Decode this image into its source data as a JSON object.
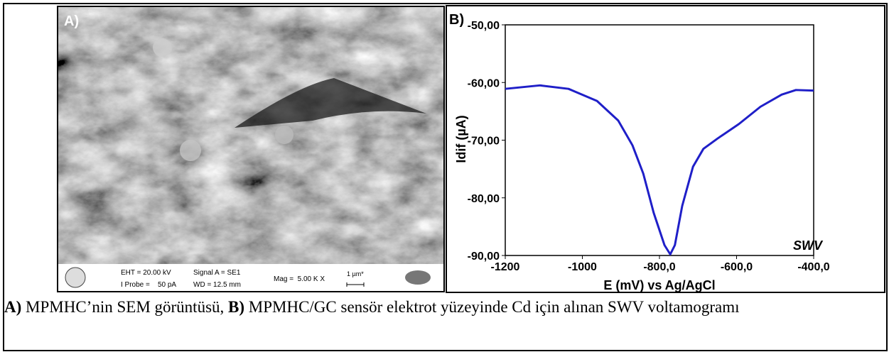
{
  "panel_a": {
    "label": "A)",
    "info": {
      "eht": "EHT = 20.00 kV",
      "probe": "I Probe =    50 pA",
      "signal": "Signal A = SE1",
      "wd": "WD = 12.5 mm",
      "mag": "Mag =  5.00 K X",
      "scale": "1 µm*"
    }
  },
  "chart_data": {
    "type": "line",
    "label": "B)",
    "annotation": "SWV",
    "x_label": "E (mV) vs Ag/AgCl",
    "y_label": "Idif (µA)",
    "x": [
      -1200,
      -1110,
      -1036,
      -962,
      -907,
      -870,
      -842,
      -815,
      -787,
      -772,
      -760,
      -741,
      -713,
      -686,
      -649,
      -594,
      -538,
      -483,
      -446,
      -400
    ],
    "series": [
      {
        "name": "SWV",
        "color": "#1f1fc8",
        "values": [
          -61.1,
          -60.5,
          -61.1,
          -63.2,
          -66.6,
          -70.9,
          -75.8,
          -82.6,
          -88.2,
          -89.8,
          -88.2,
          -81.4,
          -74.6,
          -71.5,
          -69.7,
          -67.2,
          -64.2,
          -62.1,
          -61.3,
          -61.4
        ]
      }
    ],
    "xlim": [
      -1200,
      -400
    ],
    "ylim": [
      -90,
      -50
    ],
    "xticks": [
      -1200,
      -1000,
      {
        "value": -800,
        "label": "-800,0"
      },
      {
        "value": -600,
        "label": "-600,0"
      },
      {
        "value": -400,
        "label": "-400,0"
      }
    ],
    "yticks": [
      {
        "value": -90,
        "label": "-90,00"
      },
      {
        "value": -80,
        "label": "-80,00"
      },
      {
        "value": -70,
        "label": "-70,00"
      },
      {
        "value": -60,
        "label": "-60,00"
      },
      {
        "value": -50,
        "label": "-50,00"
      }
    ]
  },
  "caption": {
    "a": "A)",
    "text_a": " MPMHC’nin SEM görüntüsü, ",
    "b": "B)",
    "text_b": " MPMHC/GC sensör elektrot yüzeyinde Cd için alınan SWV voltamogramı"
  }
}
